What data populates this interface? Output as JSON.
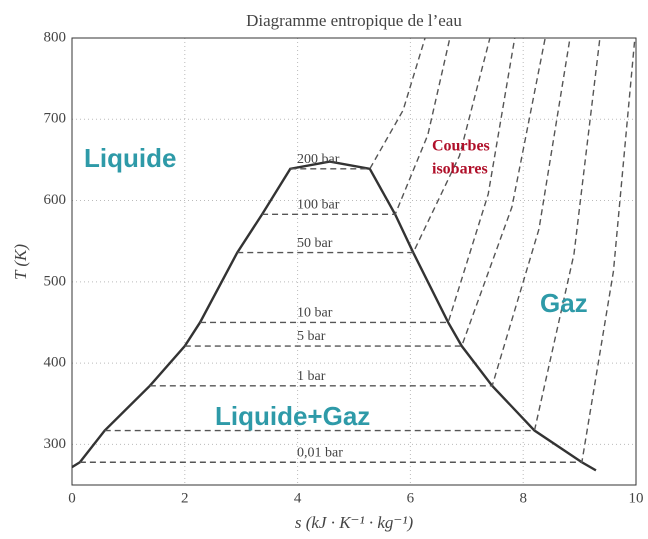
{
  "chart_data": {
    "type": "line",
    "title": "Diagramme entropique de l’eau",
    "xlabel": "s (kJ · K⁻¹ · kg⁻¹)",
    "ylabel": "T (K)",
    "xlim": [
      0,
      10
    ],
    "xticks": [
      0,
      2,
      4,
      6,
      8,
      10
    ],
    "ylim": [
      250,
      800
    ],
    "yticks": [
      300,
      400,
      500,
      600,
      700,
      800
    ],
    "grid": true,
    "series": [
      {
        "color": "#333333",
        "dashed": false,
        "x": [
          0,
          0.14,
          0.58,
          1.38,
          2.0,
          2.27,
          2.93,
          3.37,
          3.87,
          4.57,
          5.28,
          5.73,
          6.05,
          6.67,
          6.91,
          7.45,
          8.2,
          9.04,
          9.29
        ],
        "values": [
          272,
          278,
          317,
          372,
          421,
          450,
          536,
          583,
          639,
          648,
          639,
          583,
          536,
          450,
          421,
          372,
          317,
          278,
          268
        ]
      },
      {
        "name": "200 bar",
        "color": "#555555",
        "dashed": true,
        "x": [
          3.87,
          5.28,
          5.87,
          6.26
        ],
        "values": [
          639,
          639,
          711,
          800
        ]
      },
      {
        "name": "100 bar",
        "color": "#555555",
        "dashed": true,
        "x": [
          3.37,
          5.73,
          6.31,
          6.7
        ],
        "values": [
          583,
          583,
          681,
          800
        ]
      },
      {
        "name": "50 bar",
        "color": "#555555",
        "dashed": true,
        "x": [
          2.93,
          6.05,
          6.87,
          7.41
        ],
        "values": [
          536,
          536,
          655,
          800
        ]
      },
      {
        "name": "10 bar",
        "color": "#555555",
        "dashed": true,
        "x": [
          2.27,
          6.67,
          7.38,
          7.85
        ],
        "values": [
          450,
          450,
          608,
          800
        ]
      },
      {
        "name": "5 bar",
        "color": "#555555",
        "dashed": true,
        "x": [
          2.0,
          6.91,
          7.8,
          8.39
        ],
        "values": [
          421,
          421,
          592,
          800
        ]
      },
      {
        "name": "1 bar",
        "color": "#555555",
        "dashed": true,
        "x": [
          1.38,
          7.45,
          8.28,
          8.83
        ],
        "values": [
          372,
          372,
          565,
          800
        ]
      },
      {
        "color": "#555555",
        "dashed": true,
        "x": [
          0.58,
          8.2,
          8.9,
          9.36
        ],
        "values": [
          317,
          317,
          534,
          800
        ]
      },
      {
        "name": "0,01 bar",
        "color": "#555555",
        "dashed": true,
        "x": [
          0.14,
          9.04,
          9.6,
          9.98
        ],
        "values": [
          278,
          278,
          513,
          800
        ]
      }
    ],
    "annotations": [
      {
        "text": "Liquide",
        "color": "#2e9aa8"
      },
      {
        "text": "Gaz",
        "color": "#2e9aa8"
      },
      {
        "text": "Liquide+Gaz",
        "color": "#2e9aa8"
      },
      {
        "text": "Courbes",
        "color": "#b0102a"
      },
      {
        "text": "isobares",
        "color": "#b0102a"
      }
    ]
  }
}
